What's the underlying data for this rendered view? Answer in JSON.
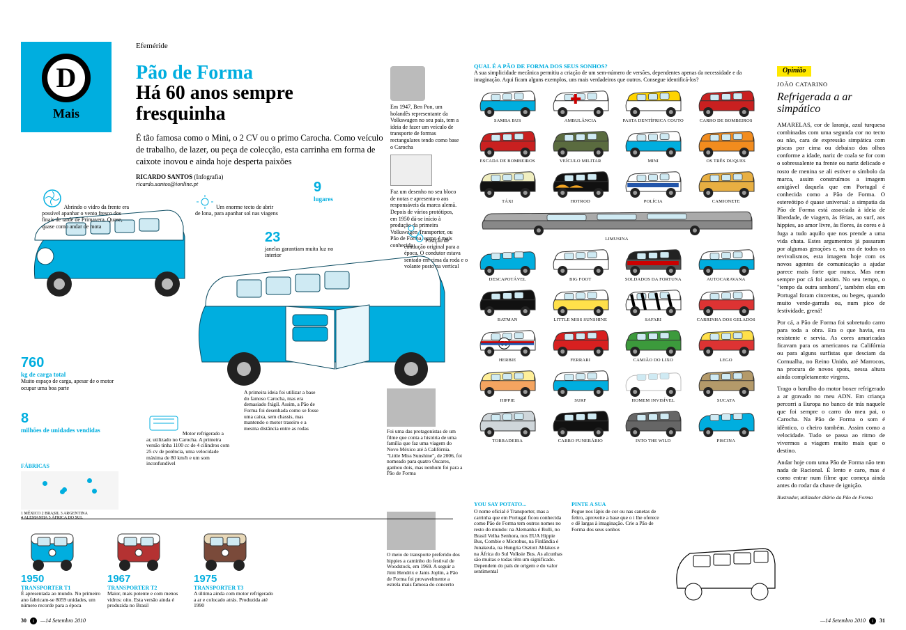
{
  "badge": {
    "letter": "D",
    "label": "Mais"
  },
  "section": "Efeméride",
  "headline": {
    "top": "Pão de Forma",
    "bottom": "Há 60 anos sempre fresquinha"
  },
  "lede": "É tão famosa como o Mini, o 2 CV ou o primo Carocha. Como veículo de trabalho, de lazer, ou peça de colecção, esta carrinha em forma de caixote inovou e ainda hoje desperta paixões",
  "byline": {
    "name": "RICARDO SANTOS",
    "role": "(Infografia)",
    "mail": "ricardo.santos@ionline.pt"
  },
  "intro": {
    "benpon": "Em 1947, Ben Pon, um holandês representante da Volkswagen no seu país, tem a ideia de fazer um veículo de transporte de formas rectangulares tendo como base o Carocha",
    "bloco": "Faz um desenho no seu bloco de notas e apresenta-o aos responsáveis da marca alemã. Depois de vários protótipos, em 1950 dá-se início à produção da primeira Volkswagen Transporter, ou Pão de Forma, como é mais conhecida"
  },
  "callouts": {
    "fan": "Abrindo o vidro da frente era possível apanhar o vento fresco dos finais de tarde de Primavera. Quase, quase como andar de mota",
    "tecto": "Um enorme tecto de abrir de lona, para apanhar sol nas viagens",
    "lugares": {
      "value": "9",
      "unit": "lugares"
    },
    "janelas": {
      "value": "23",
      "unit": "janelas garantiam muita luz no interior"
    },
    "conducao": "Posição de condução original para a época. O condutor estava sentado em cima da roda e o volante posto na vertical",
    "carga": {
      "value": "760",
      "unit": "kg de carga total",
      "note": "Muito espaço de carga, apesar de o motor ocupar uma boa parte"
    },
    "vendas": {
      "value": "8",
      "unit": "milhões de unidades vendidas"
    },
    "motor": "Motor refrigerado a ar, utilizado no Carocha. A primeira versão tinha 1100 cc de 4 cilindros com 25 cv de potência, uma velocidade máxima de 80 km/h e um som inconfundível",
    "base": "A primeira ideia foi utilizar a base do famoso Carocha, mas era demasiado frágil. Assim, a Pão de Forma foi desenhada como se fosse uma caixa, sem chassis, mas mantendo o motor traseiro e a mesma distância entre as rodas"
  },
  "factories": {
    "label": "Fábricas",
    "caption": "1 MÉXICO  2 BRASIL  3 ARGENTINA\n4 ALEMANHA  5 ÁFRICA DO SUL",
    "dots": [
      [
        22,
        25
      ],
      [
        42,
        42
      ],
      [
        40,
        48
      ],
      [
        68,
        18
      ],
      [
        73,
        45
      ]
    ]
  },
  "timeline": [
    {
      "year": "1950",
      "model": "Transporter T1",
      "text": "É apresentada ao mundo. No primeiro ano fabricam-se 8059 unidades, um número recorde para a época",
      "body": "#00aedf",
      "roof": "#ffffff"
    },
    {
      "year": "1967",
      "model": "Transporter T2",
      "text": "Maior, mais potente e com menos vidros: oito. Esta versão ainda é produzida no Brasil",
      "body": "#b43232",
      "roof": "#ffffff"
    },
    {
      "year": "1975",
      "model": "Transporter T3",
      "text": "A última ainda com motor refrigerado a ar e colocado atrás. Produzida até 1990",
      "body": "#7a4a3a",
      "roof": "#e8d8b8"
    }
  ],
  "movies": {
    "sunshine": "Foi uma das protagonistas de um filme que conta a história de uma família que faz uma viagem do Novo México até à Califórnia. \"Little Miss Sunshine\", de 2006, foi nomeado para quatro Óscares, ganhou dois, mas nenhum foi para a Pão de Forma",
    "woodstock": "O meio de transporte preferido dos hippies a caminho do festival de Woodstock, em 1969. A seguir a Jimi Hendrix e Janis Joplin, a Pão de Forma foi provavelmente a estrela mais famosa do concerto"
  },
  "variants": {
    "title": "Qual é a Pão de Forma dos seus sonhos?",
    "intro": "A sua simplicidade mecânica permitiu a criação de um sem-número de versões, dependentes apenas da necessidade e da imaginação. Aqui ficam alguns exemplos, uns mais verdadeiros que outros. Consegue identificá-los?",
    "items": [
      {
        "label": "Samba Bus",
        "body": "#00aedf",
        "roof": "#fff"
      },
      {
        "label": "Ambulância",
        "body": "#fff",
        "roof": "#fff",
        "accent": "#c00"
      },
      {
        "label": "Pasta Dentífrica Couto",
        "body": "#fff",
        "roof": "#ffd400"
      },
      {
        "label": "Carro de Bombeiros",
        "body": "#c92020",
        "roof": "#c92020"
      },
      {
        "label": "Escada de Bombeiros",
        "body": "#c92020",
        "roof": "#c92020"
      },
      {
        "label": "Veículo Militar",
        "body": "#5a6b3f",
        "roof": "#5a6b3f"
      },
      {
        "label": "Mini",
        "body": "#00aedf",
        "roof": "#fff"
      },
      {
        "label": "Os Três Duques",
        "body": "#f28c1e",
        "roof": "#f28c1e"
      },
      {
        "label": "Táxi",
        "body": "#111",
        "roof": "#f0eec0"
      },
      {
        "label": "Hotrod",
        "body": "#111",
        "roof": "#111",
        "flame": true
      },
      {
        "label": "Polícia",
        "body": "#fff",
        "roof": "#fff",
        "stripe": "#2255aa"
      },
      {
        "label": "Camionete",
        "body": "#e8af42",
        "roof": "#e8af42"
      },
      {
        "label": "Limusina",
        "body": "#888",
        "roof": "#aaa",
        "wide": true
      },
      {
        "label": "Descapotável",
        "body": "#00aedf",
        "roof": "none"
      },
      {
        "label": "Big Foot",
        "body": "#fff",
        "roof": "#fff"
      },
      {
        "label": "Soldados da Fortuna",
        "body": "#555",
        "roof": "#222",
        "stripe": "#c00"
      },
      {
        "label": "Autocaravana",
        "body": "#00aedf",
        "roof": "#fff"
      },
      {
        "label": "Batman",
        "body": "#111",
        "roof": "#111"
      },
      {
        "label": "Little Miss Sunshine",
        "body": "#ffe04a",
        "roof": "#fff"
      },
      {
        "label": "Safari",
        "body": "#fff",
        "roof": "#fff",
        "zebra": true
      },
      {
        "label": "Carrinha dos Gelados",
        "body": "#d33",
        "roof": "#fff"
      },
      {
        "label": "Herbie",
        "body": "#fff",
        "roof": "#fff",
        "herbie": true
      },
      {
        "label": "Ferrari",
        "body": "#d82020",
        "roof": "#d82020"
      },
      {
        "label": "Camião do Lixo",
        "body": "#3c9a3c",
        "roof": "#3c9a3c"
      },
      {
        "label": "Lego",
        "body": "#d33",
        "roof": "#ffe04a"
      },
      {
        "label": "Hippie",
        "body": "#f4a460",
        "roof": "#ffef99"
      },
      {
        "label": "Surf",
        "body": "#00aedf",
        "roof": "#fff"
      },
      {
        "label": "Homem Invisível",
        "body": "none",
        "roof": "none"
      },
      {
        "label": "Sucata",
        "body": "#b49a6a",
        "roof": "#b49a6a"
      },
      {
        "label": "Torradeira",
        "body": "#cfd6da",
        "roof": "#cfd6da"
      },
      {
        "label": "Carro Funerário",
        "body": "#111",
        "roof": "#111"
      },
      {
        "label": "Into the Wild",
        "body": "#666",
        "roof": "#666"
      },
      {
        "label": "Piscina",
        "body": "#00aedf",
        "roof": "none"
      }
    ]
  },
  "bottom": {
    "potato": {
      "title": "You say potato...",
      "text": "O nome oficial é Transporter, mas a carrinha que em Portugal ficou conhecida como Pão de Forma tem outros nomes no resto do mundo: na Alemanha é Bulli, no Brasil Velha Senhora, nos EUA Hippie Bus, Combie e Microbus, na Finlândia é Junakeula, na Hungria Osztott Ablakos e na África do Sul Volksie Bus. As alcunhas são muitas e todas têm um significado. Dependem do país de origem e do valor sentimental"
    },
    "pinte": {
      "title": "Pinte a sua",
      "text": "Pegue nos lápis de cor ou nas canetas de feltro, aproveite a base que o i lhe oferece e dê largas à imaginação. Crie a Pão de Forma dos seus sonhos"
    }
  },
  "opinion": {
    "tag": "Opinião",
    "author": "JOÃO CATARINO",
    "title": "Refrigerada a ar simpático",
    "paras": [
      "AMARELAS, cor de laranja, azul turquesa combinadas com uma segunda cor no tecto ou não, cara de expressão simpática com piscas por cima ou debaixo dos olhos conforme a idade, nariz de coala se for com o sobressalente na frente ou nariz delicado e rosto de menina se ali estiver o símbolo da marca, assim construímos a imagem amigável daquela que em Portugal é conhecida como a Pão de Forma. O estereótipo é quase universal: a simpatia da Pão de Forma está associada à ideia de liberdade, de viagem, às férias, ao surf, aos hippies, ao amor livre, às flores, às cores e à fuga a tudo aquilo que nos prende a uma vida chata. Estes argumentos já passaram por algumas gerações e, na era de todos os revivalismos, esta imagem hoje com os novos agentes de comunicação a ajudar parece mais forte que nunca. Mas nem sempre por cá foi assim. No seu tempo, o \"tempo da outra senhora\", também elas em Portugal foram cinzentas, ou beges, quando muito verde-garrafa ou, num pico de festividade, grená!",
      "Por cá, a Pão de Forma foi sobretudo carro para toda a obra. Era o que havia, era resistente e servia. As cores amaricadas ficavam para os americanos na Califórnia ou para alguns surfistas que desciam da Cornualha, no Reino Unido, até Marrocos, na procura de novos spots, nessa altura ainda completamente virgens.",
      "Trago o barulho do motor boxer refrigerado a ar gravado no meu ADN. Em criança percorri a Europa no banco de trás naquele que foi sempre o carro do meu pai, o Carocha. Na Pão de Forma o som é idêntico, o cheiro também. Assim como a velocidade. Tudo se passa ao ritmo de vivermos a viagem muito mais que o destino.",
      "Andar hoje com uma Pão de Forma não tem nada de Racional. É lento e caro, mas é como entrar num filme que começa ainda antes do rodar da chave de ignição."
    ],
    "sig": "Ilustrador, utilizador diário da Pão de Forma"
  },
  "footer": {
    "left_page": "30",
    "right_page": "31",
    "date": "—14 Setembro 2010"
  },
  "colors": {
    "accent": "#00aedf",
    "yellow": "#ffe800"
  }
}
